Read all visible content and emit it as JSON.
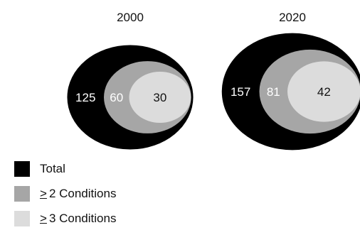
{
  "chart_data": {
    "type": "nested-ellipse",
    "panels": [
      {
        "title": "2000",
        "values": [
          125,
          60,
          30
        ]
      },
      {
        "title": "2020",
        "values": [
          157,
          81,
          42
        ]
      }
    ],
    "series": [
      {
        "name": "Total",
        "symbol": "",
        "text": "Total",
        "color": "#000000",
        "label_color": "#ffffff"
      },
      {
        "name": "≥ 2 Conditions",
        "symbol": ">",
        "text": "2 Conditions",
        "color": "#a6a6a6",
        "label_color": "#ffffff"
      },
      {
        "name": "≥ 3 Conditions",
        "symbol": ">",
        "text": "3 Conditions",
        "color": "#dcdcdc",
        "label_color": "#111111"
      }
    ]
  }
}
